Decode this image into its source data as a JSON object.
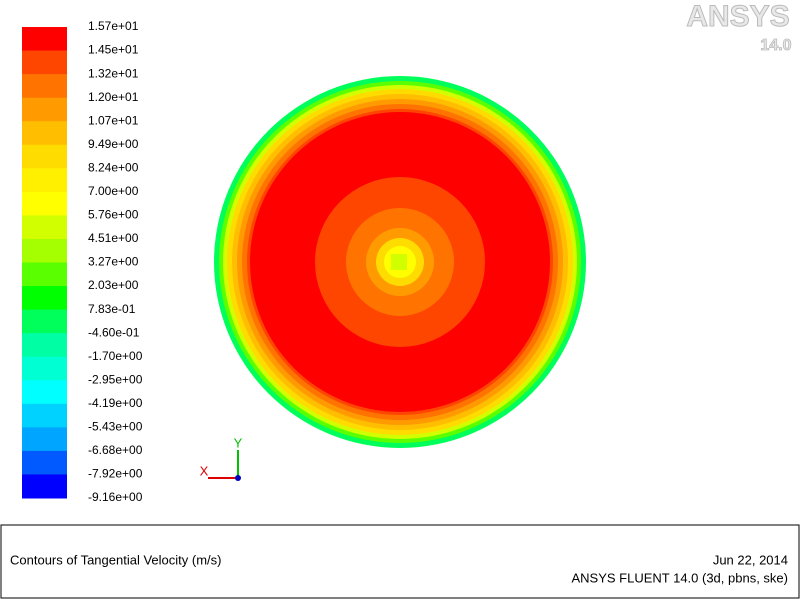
{
  "logo": {
    "brand": "ANSYS",
    "version": "14.0"
  },
  "legend": {
    "labels": [
      "1.57e+01",
      "1.45e+01",
      "1.32e+01",
      "1.20e+01",
      "1.07e+01",
      "9.49e+00",
      "8.24e+00",
      "7.00e+00",
      "5.76e+00",
      "4.51e+00",
      "3.27e+00",
      "2.03e+00",
      "7.83e-01",
      "-4.60e-01",
      "-1.70e+00",
      "-2.95e+00",
      "-4.19e+00",
      "-5.43e+00",
      "-6.68e+00",
      "-7.92e+00",
      "-9.16e+00"
    ],
    "band_colors": [
      "#ff0000",
      "#ff4600",
      "#ff7300",
      "#ff9b00",
      "#ffbe00",
      "#ffdc00",
      "#fff000",
      "#ffff00",
      "#d2ff00",
      "#a5ff00",
      "#5aff00",
      "#00ff00",
      "#00ff5a",
      "#00ffa5",
      "#00ffd2",
      "#00ffff",
      "#00d2ff",
      "#00a5ff",
      "#005aff",
      "#0000ff"
    ]
  },
  "axes": {
    "x": "X",
    "y": "Y"
  },
  "footer": {
    "title": "Contours of Tangential Velocity (m/s)",
    "date": "Jun 22, 2014",
    "product": "ANSYS FLUENT 14.0 (3d, pbns, ske)"
  }
}
